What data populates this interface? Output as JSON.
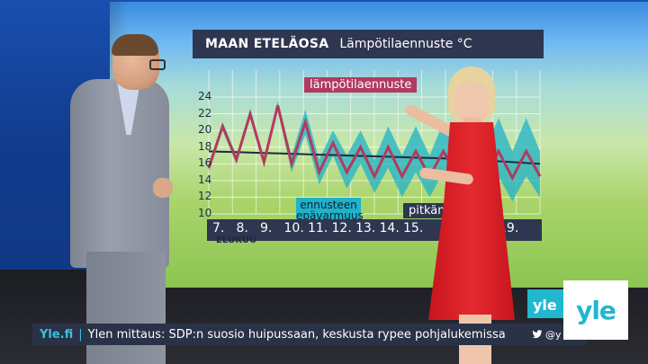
{
  "broadcast": {
    "chart_header": {
      "region": "MAAN ETELÄOSA",
      "subtitle": "Lämpötilaennuste °C"
    },
    "labels": {
      "temperature": "lämpötilaennuste",
      "uncertainty": "ennusteen epävarmuus",
      "long_term": "pitkän ... arvo"
    },
    "x_ticks": [
      "7.",
      "8.",
      "9.",
      "10.",
      "11.",
      "12.",
      "13.",
      "14.",
      "15.",
      "19."
    ],
    "month": "ELOKUU",
    "y_ticks": [
      "24",
      "22",
      "20",
      "18",
      "16",
      "14",
      "12",
      "10"
    ],
    "ticker": {
      "site": "Yle.fi",
      "separator": "|",
      "headline": "Ylen mittaus: SDP:n suosio huipussaan, keskusta rypee pohjalukemissa"
    },
    "social": {
      "handle": "@y",
      "icon": "twitter-icon"
    },
    "live_logo": "yle",
    "channel_logo": "yle",
    "colors": {
      "forecast_line": "#b23a5f",
      "uncertainty_band": "#1fb2c8",
      "long_term_line": "#1e2a44",
      "brand": "#21b7cf"
    }
  },
  "chart_data": {
    "type": "line",
    "title": "MAAN ETELÄOSA",
    "subtitle": "Lämpötilaennuste °C",
    "xlabel": "ELOKUU",
    "ylabel": "",
    "ylim": [
      10,
      24
    ],
    "x": [
      7,
      7.5,
      8,
      8.5,
      9,
      9.5,
      10,
      10.5,
      11,
      11.5,
      12,
      12.5,
      13,
      13.5,
      14,
      14.5,
      15,
      15.5,
      16,
      16.5,
      17,
      17.5,
      18,
      18.5,
      19
    ],
    "series": [
      {
        "name": "lämpötilaennuste",
        "values": [
          15.5,
          20.5,
          16.5,
          22.0,
          16.2,
          23.0,
          16.0,
          21.0,
          15.0,
          18.5,
          15.0,
          18.0,
          14.5,
          18.0,
          14.5,
          17.5,
          14.5,
          17.5,
          14.5,
          17.5,
          14.3,
          17.5,
          14.3,
          17.5,
          14.5
        ]
      },
      {
        "name": "ennusteen epävarmuus",
        "band_low": [
          15.0,
          20.0,
          16.0,
          21.5,
          15.8,
          22.5,
          15.0,
          19.5,
          13.5,
          17.0,
          13.0,
          16.0,
          12.5,
          15.5,
          12.0,
          15.0,
          12.0,
          15.0,
          11.5,
          14.5,
          11.5,
          14.5,
          11.5,
          14.5,
          12.0
        ],
        "band_high": [
          16.0,
          21.0,
          17.0,
          22.5,
          16.8,
          23.5,
          17.0,
          22.5,
          16.5,
          20.0,
          17.0,
          20.0,
          16.5,
          20.5,
          17.0,
          20.5,
          17.0,
          21.0,
          17.5,
          21.0,
          17.5,
          21.5,
          17.5,
          21.5,
          17.5
        ]
      },
      {
        "name": "pitkän ... arvo",
        "values": [
          17.5,
          17.45,
          17.4,
          17.35,
          17.3,
          17.25,
          17.2,
          17.15,
          17.1,
          17.05,
          17.0,
          16.95,
          16.9,
          16.85,
          16.8,
          16.75,
          16.7,
          16.65,
          16.6,
          16.5,
          16.4,
          16.3,
          16.2,
          16.1,
          16.0
        ]
      }
    ],
    "grid": true,
    "legend": "inline"
  }
}
